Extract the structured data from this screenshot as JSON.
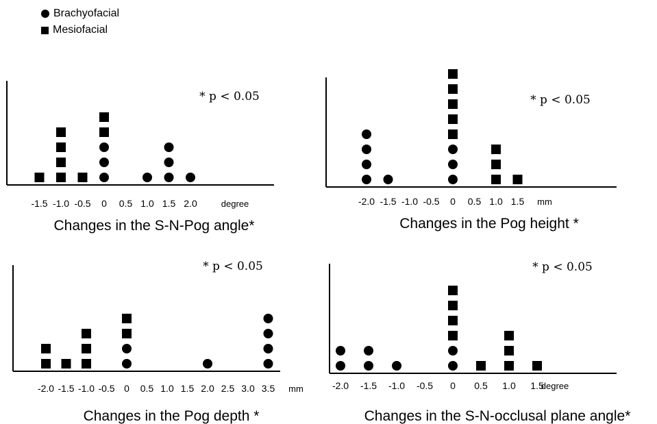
{
  "legend": [
    {
      "symbol": "circle",
      "label": "Brachyofacial"
    },
    {
      "symbol": "square",
      "label": "Mesiofacial"
    }
  ],
  "chart_data": [
    {
      "type": "scatter",
      "title": "Changes in the S-N-Pog angle*",
      "annotation": "* p < 0.05",
      "xlabel": "degree",
      "xticks": [
        "-1.5",
        "-1.0",
        "-0.5",
        "0",
        "0.5",
        "1.0",
        "1.5",
        "2.0"
      ],
      "series": [
        {
          "name": "Brachyofacial",
          "symbol": "circle",
          "values": [
            {
              "x": 0,
              "count": 3
            },
            {
              "x": 1.0,
              "count": 1
            },
            {
              "x": 1.5,
              "count": 3
            },
            {
              "x": 2.0,
              "count": 1
            }
          ]
        },
        {
          "name": "Mesiofacial",
          "symbol": "square",
          "values": [
            {
              "x": -1.5,
              "count": 1
            },
            {
              "x": -1.0,
              "count": 4
            },
            {
              "x": -0.5,
              "count": 1
            },
            {
              "x": 0,
              "count": 2
            }
          ]
        }
      ]
    },
    {
      "type": "scatter",
      "title": "Changes in the Pog height *",
      "annotation": "* p < 0.05",
      "xlabel": "mm",
      "xticks": [
        "-2.0",
        "-1.5",
        "-1.0",
        "-0.5",
        "0",
        "0.5",
        "1.0",
        "1.5"
      ],
      "series": [
        {
          "name": "Brachyofacial",
          "symbol": "circle",
          "values": [
            {
              "x": -2.0,
              "count": 4
            },
            {
              "x": -1.5,
              "count": 1
            },
            {
              "x": 0,
              "count": 3
            }
          ]
        },
        {
          "name": "Mesiofacial",
          "symbol": "square",
          "values": [
            {
              "x": 0,
              "count": 5
            },
            {
              "x": 1.0,
              "count": 3
            },
            {
              "x": 1.5,
              "count": 1
            }
          ]
        }
      ]
    },
    {
      "type": "scatter",
      "title": "Changes in the Pog depth *",
      "annotation": "* p < 0.05",
      "xlabel": "mm",
      "xticks": [
        "-2.0",
        "-1.5",
        "-1.0",
        "-0.5",
        "0",
        "0.5",
        "1.0",
        "1.5",
        "2.0",
        "2.5",
        "3.0",
        "3.5"
      ],
      "series": [
        {
          "name": "Brachyofacial",
          "symbol": "circle",
          "values": [
            {
              "x": 0,
              "count": 2
            },
            {
              "x": 2.0,
              "count": 1
            },
            {
              "x": 3.5,
              "count": 4
            }
          ]
        },
        {
          "name": "Mesiofacial",
          "symbol": "square",
          "values": [
            {
              "x": -2.0,
              "count": 2
            },
            {
              "x": -1.5,
              "count": 1
            },
            {
              "x": -1.0,
              "count": 3
            },
            {
              "x": 0,
              "count": 2
            }
          ]
        }
      ]
    },
    {
      "type": "scatter",
      "title": "Changes in the S-N-occlusal plane angle*",
      "annotation": "* p < 0.05",
      "xlabel": "degree",
      "xticks": [
        "-2.0",
        "-1.5",
        "-1.0",
        "-0.5",
        "0",
        "0.5",
        "1.0",
        "1.5"
      ],
      "series": [
        {
          "name": "Brachyofacial",
          "symbol": "circle",
          "values": [
            {
              "x": -2.0,
              "count": 2
            },
            {
              "x": -1.5,
              "count": 2
            },
            {
              "x": -1.0,
              "count": 1
            },
            {
              "x": 0,
              "count": 2
            }
          ]
        },
        {
          "name": "Mesiofacial",
          "symbol": "square",
          "values": [
            {
              "x": 0,
              "count": 4
            },
            {
              "x": 0.5,
              "count": 1
            },
            {
              "x": 1.0,
              "count": 3
            },
            {
              "x": 1.5,
              "count": 1
            }
          ]
        }
      ]
    }
  ]
}
